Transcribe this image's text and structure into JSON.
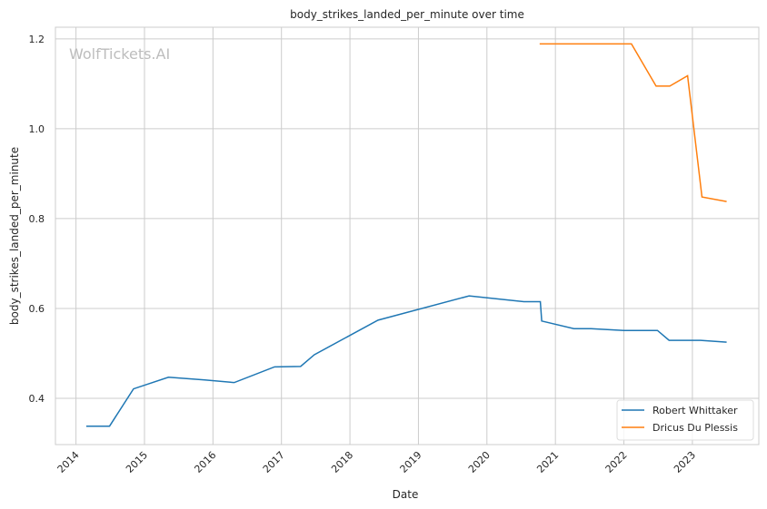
{
  "chart_data": {
    "type": "line",
    "title": "body_strikes_landed_per_minute over time",
    "xlabel": "Date",
    "ylabel": "body_strikes_landed_per_minute",
    "watermark": "WolfTickets.AI",
    "xlim": [
      2013.7,
      2023.97
    ],
    "ylim": [
      0.297,
      1.226
    ],
    "x_ticks": [
      "2014",
      "2015",
      "2016",
      "2017",
      "2018",
      "2019",
      "2020",
      "2021",
      "2022",
      "2023"
    ],
    "y_ticks": [
      "0.4",
      "0.6",
      "0.8",
      "1.0",
      "1.2"
    ],
    "grid": true,
    "legend_position": "bottom-right",
    "series": [
      {
        "name": "Robert Whittaker",
        "color": "#1f77b4",
        "x": [
          2014.15,
          2014.49,
          2014.84,
          2015.35,
          2015.88,
          2016.31,
          2016.9,
          2017.28,
          2017.48,
          2018.41,
          2019.74,
          2020.54,
          2020.78,
          2020.8,
          2021.27,
          2021.52,
          2022.0,
          2022.49,
          2022.66,
          2023.12,
          2023.5
        ],
        "y": [
          0.338,
          0.338,
          0.421,
          0.447,
          0.441,
          0.435,
          0.47,
          0.471,
          0.497,
          0.574,
          0.628,
          0.615,
          0.615,
          0.572,
          0.555,
          0.555,
          0.551,
          0.551,
          0.529,
          0.529,
          0.525
        ]
      },
      {
        "name": "Dricus Du Plessis",
        "color": "#ff7f0e",
        "x": [
          2020.77,
          2022.11,
          2022.47,
          2022.67,
          2022.93,
          2023.14,
          2023.5
        ],
        "y": [
          1.189,
          1.189,
          1.095,
          1.095,
          1.118,
          0.848,
          0.838
        ]
      }
    ]
  }
}
